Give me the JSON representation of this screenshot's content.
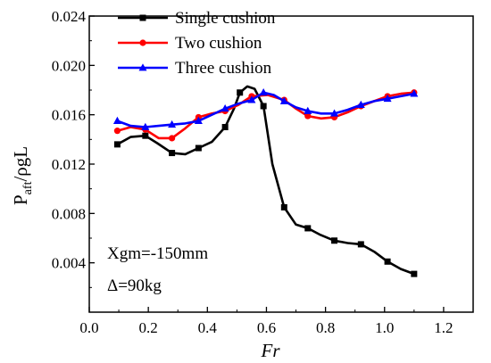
{
  "chart_data": {
    "type": "line",
    "xlabel": "Fr",
    "ylabel_main": "P",
    "ylabel_sub": "aft",
    "ylabel_tail": "/ρgL",
    "xlim": [
      0.0,
      1.3
    ],
    "ylim": [
      0.0,
      0.024
    ],
    "x_ticks": [
      "0.0",
      "0.2",
      "0.4",
      "0.6",
      "0.8",
      "1.0",
      "1.2"
    ],
    "x_tick_values": [
      0.0,
      0.2,
      0.4,
      0.6,
      0.8,
      1.0,
      1.2
    ],
    "y_ticks": [
      "0.004",
      "0.008",
      "0.012",
      "0.016",
      "0.020",
      "0.024"
    ],
    "y_tick_values": [
      0.004,
      0.008,
      0.012,
      0.016,
      0.02,
      0.024
    ],
    "grid": false,
    "legend_position": "top-center",
    "annotations": [
      "Xgm=-150mm",
      "Δ=90kg"
    ],
    "series": [
      {
        "name": "Single cushion",
        "color": "#000000",
        "marker": "square",
        "x": [
          0.095,
          0.19,
          0.28,
          0.37,
          0.46,
          0.51,
          0.59,
          0.66,
          0.74,
          0.83,
          0.92,
          1.01,
          1.1
        ],
        "y": [
          0.0136,
          0.0143,
          0.0129,
          0.0133,
          0.015,
          0.0178,
          0.0167,
          0.0085,
          0.0068,
          0.0058,
          0.0055,
          0.0041,
          0.0031
        ],
        "curve_x": [
          0.095,
          0.14,
          0.19,
          0.23,
          0.28,
          0.325,
          0.37,
          0.415,
          0.46,
          0.49,
          0.51,
          0.535,
          0.56,
          0.59,
          0.62,
          0.66,
          0.7,
          0.74,
          0.78,
          0.83,
          0.875,
          0.92,
          0.965,
          1.01,
          1.055,
          1.1
        ],
        "curve_y": [
          0.0136,
          0.0142,
          0.0143,
          0.0137,
          0.0129,
          0.0128,
          0.0133,
          0.0138,
          0.015,
          0.0165,
          0.0178,
          0.0183,
          0.0181,
          0.0167,
          0.012,
          0.0085,
          0.0071,
          0.0068,
          0.0063,
          0.0058,
          0.0056,
          0.0055,
          0.0049,
          0.0041,
          0.0035,
          0.0031
        ]
      },
      {
        "name": "Two cushion",
        "color": "#ff0000",
        "marker": "circle",
        "x": [
          0.095,
          0.19,
          0.28,
          0.37,
          0.46,
          0.55,
          0.66,
          0.74,
          0.83,
          0.92,
          1.01,
          1.1
        ],
        "y": [
          0.0147,
          0.0148,
          0.0141,
          0.0158,
          0.0163,
          0.0175,
          0.0172,
          0.0159,
          0.0158,
          0.0167,
          0.0175,
          0.0178
        ],
        "curve_x": [
          0.095,
          0.14,
          0.19,
          0.235,
          0.28,
          0.325,
          0.37,
          0.415,
          0.46,
          0.505,
          0.55,
          0.605,
          0.66,
          0.7,
          0.74,
          0.785,
          0.83,
          0.875,
          0.92,
          0.965,
          1.01,
          1.055,
          1.1
        ],
        "curve_y": [
          0.0147,
          0.015,
          0.0148,
          0.0141,
          0.0141,
          0.0149,
          0.0158,
          0.0161,
          0.0163,
          0.0168,
          0.0175,
          0.0176,
          0.0172,
          0.0165,
          0.0159,
          0.0157,
          0.0158,
          0.0162,
          0.0167,
          0.0171,
          0.0175,
          0.0177,
          0.0178
        ]
      },
      {
        "name": "Three cushion",
        "color": "#0000ff",
        "marker": "triangle",
        "x": [
          0.095,
          0.19,
          0.28,
          0.37,
          0.46,
          0.55,
          0.59,
          0.66,
          0.74,
          0.83,
          0.92,
          1.01,
          1.1
        ],
        "y": [
          0.0155,
          0.015,
          0.0152,
          0.0155,
          0.0165,
          0.0172,
          0.0178,
          0.0171,
          0.0163,
          0.0161,
          0.0168,
          0.0173,
          0.0177
        ],
        "curve_x": [
          0.095,
          0.14,
          0.19,
          0.235,
          0.28,
          0.325,
          0.37,
          0.415,
          0.46,
          0.505,
          0.55,
          0.59,
          0.625,
          0.66,
          0.7,
          0.74,
          0.785,
          0.83,
          0.875,
          0.92,
          0.965,
          1.01,
          1.055,
          1.1
        ],
        "curve_y": [
          0.0155,
          0.0151,
          0.015,
          0.0151,
          0.0152,
          0.0153,
          0.0155,
          0.016,
          0.0165,
          0.0169,
          0.0172,
          0.0178,
          0.0176,
          0.0171,
          0.0166,
          0.0163,
          0.0161,
          0.0161,
          0.0164,
          0.0168,
          0.0171,
          0.0173,
          0.0175,
          0.0177
        ]
      }
    ]
  }
}
